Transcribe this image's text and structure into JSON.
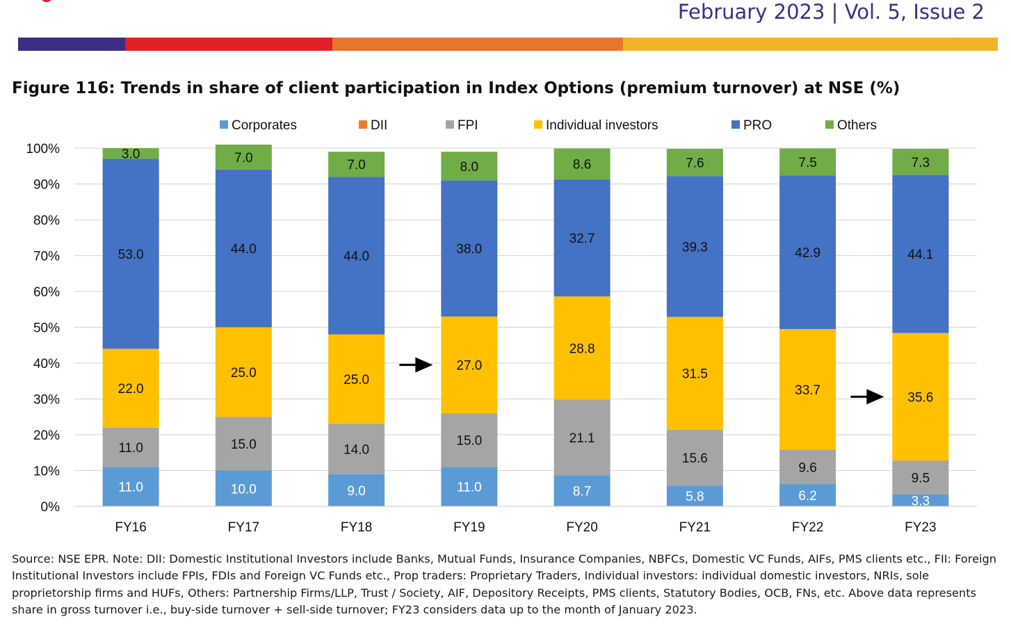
{
  "header": {
    "issue_text": "February 2023 | Vol. 5, Issue 2",
    "band_colors": [
      "#3b2e83",
      "#e31f26",
      "#e8762d",
      "#f0b428"
    ]
  },
  "figure": {
    "title": "Figure 116: Trends in share of client participation in Index Options (premium turnover) at NSE (%)"
  },
  "chart_data": {
    "type": "bar",
    "stacked": true,
    "categories": [
      "FY16",
      "FY17",
      "FY18",
      "FY19",
      "FY20",
      "FY21",
      "FY22",
      "FY23"
    ],
    "series": [
      {
        "name": "Corporates",
        "color": "#5b9bd5",
        "label_color": "#ffffff",
        "values": [
          11.0,
          10.0,
          9.0,
          11.0,
          8.7,
          5.8,
          6.2,
          3.3
        ]
      },
      {
        "name": "DII",
        "color": "#ed7d31",
        "label_color": "#111111",
        "values": [
          0,
          0,
          0,
          0,
          0,
          0,
          0,
          0
        ]
      },
      {
        "name": "FPI",
        "color": "#a5a5a5",
        "label_color": "#111111",
        "values": [
          11.0,
          15.0,
          14.0,
          15.0,
          21.1,
          15.6,
          9.6,
          9.5
        ]
      },
      {
        "name": "Individual investors",
        "color": "#ffc000",
        "label_color": "#111111",
        "values": [
          22.0,
          25.0,
          25.0,
          27.0,
          28.8,
          31.5,
          33.7,
          35.6
        ]
      },
      {
        "name": "PRO",
        "color": "#4472c4",
        "label_color": "#111111",
        "values": [
          53.0,
          44.0,
          44.0,
          38.0,
          32.7,
          39.3,
          42.9,
          44.1
        ]
      },
      {
        "name": "Others",
        "color": "#70ad47",
        "label_color": "#111111",
        "values": [
          3.0,
          7.0,
          7.0,
          8.0,
          8.6,
          7.6,
          7.5,
          7.3
        ]
      }
    ],
    "yticks": [
      "0%",
      "10%",
      "20%",
      "30%",
      "40%",
      "50%",
      "60%",
      "70%",
      "80%",
      "90%",
      "100%"
    ],
    "ylim": [
      0,
      100
    ],
    "grid": true,
    "legend_position": "top",
    "arrows": [
      {
        "category": "FY19",
        "series": "Individual investors"
      },
      {
        "category": "FY23",
        "series": "Individual investors"
      }
    ]
  },
  "source_note": "Source: NSE EPR. Note: DII: Domestic Institutional Investors include Banks, Mutual Funds, Insurance Companies, NBFCs, Domestic VC Funds, AIFs, PMS clients etc., FII: Foreign Institutional Investors include FPIs, FDIs and Foreign VC Funds etc., Prop traders: Proprietary Traders, Individual investors: individual domestic investors, NRIs, sole proprietorship firms and HUFs, Others: Partnership Firms/LLP, Trust / Society, AIF, Depository Receipts, PMS clients, Statutory Bodies, OCB, FNs, etc. Above data represents share in gross turnover i.e., buy-side turnover + sell-side turnover; FY23 considers data up to the month of January 2023."
}
